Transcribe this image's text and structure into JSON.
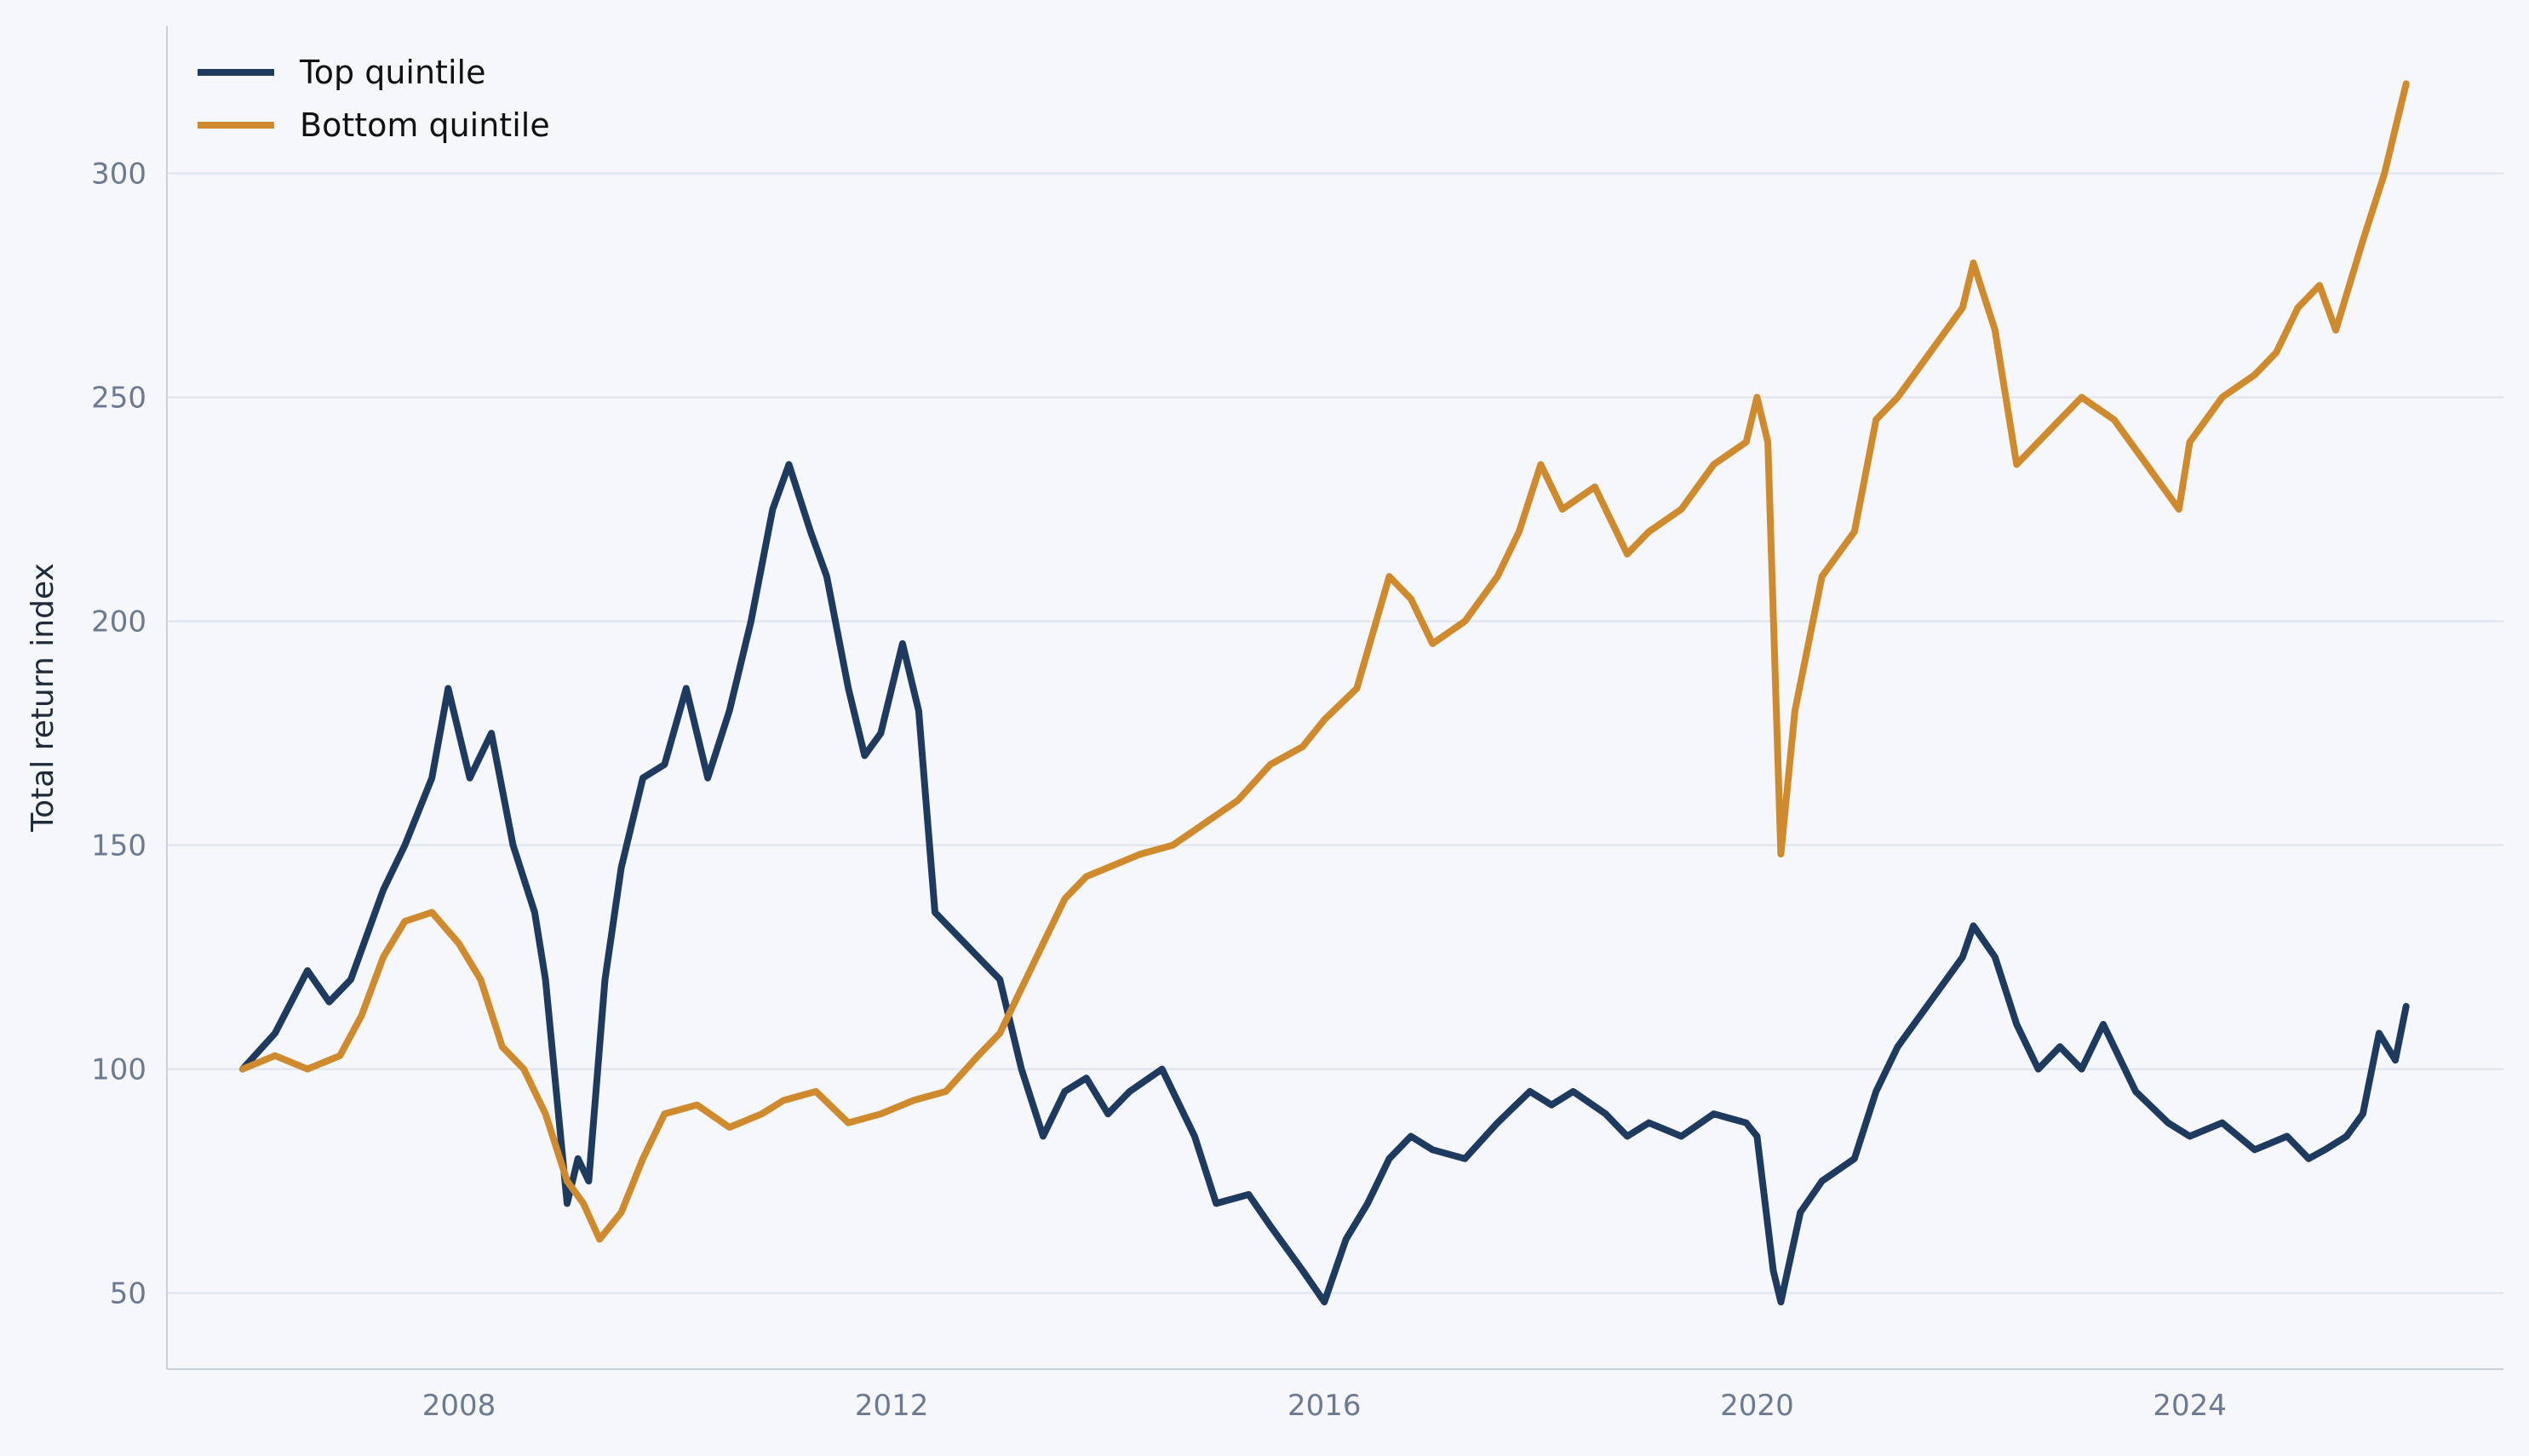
{
  "chart_data": {
    "type": "line",
    "title": "",
    "xlabel": "",
    "ylabel": "Total return index",
    "xlim": [
      2005.3,
      2026.9
    ],
    "ylim": [
      33,
      333
    ],
    "x_ticks": [
      2008,
      2012,
      2016,
      2020,
      2024
    ],
    "x_tick_labels": [
      "2008",
      "2012",
      "2016",
      "2020",
      "2024"
    ],
    "y_ticks": [
      50,
      100,
      150,
      200,
      250,
      300
    ],
    "y_tick_labels": [
      "50",
      "100",
      "150",
      "200",
      "250",
      "300"
    ],
    "grid": "horizontal",
    "legend_position": "top-left",
    "series": [
      {
        "name": "Top quintile",
        "color": "#1f3a5f",
        "x": [
          2006.0,
          2006.3,
          2006.6,
          2006.8,
          2007.0,
          2007.3,
          2007.5,
          2007.75,
          2007.9,
          2008.1,
          2008.3,
          2008.5,
          2008.7,
          2008.8,
          2008.9,
          2009.0,
          2009.1,
          2009.2,
          2009.35,
          2009.5,
          2009.7,
          2009.9,
          2010.1,
          2010.3,
          2010.5,
          2010.7,
          2010.9,
          2011.05,
          2011.25,
          2011.4,
          2011.6,
          2011.75,
          2011.9,
          2012.1,
          2012.25,
          2012.4,
          2012.6,
          2012.8,
          2013.0,
          2013.2,
          2013.4,
          2013.6,
          2013.8,
          2014.0,
          2014.2,
          2014.5,
          2014.8,
          2015.0,
          2015.3,
          2015.5,
          2015.8,
          2016.0,
          2016.2,
          2016.4,
          2016.6,
          2016.8,
          2017.0,
          2017.3,
          2017.6,
          2017.9,
          2018.1,
          2018.3,
          2018.6,
          2018.8,
          2019.0,
          2019.3,
          2019.6,
          2019.9,
          2020.0,
          2020.15,
          2020.22,
          2020.4,
          2020.6,
          2020.9,
          2021.1,
          2021.3,
          2021.6,
          2021.9,
          2022.0,
          2022.2,
          2022.4,
          2022.6,
          2022.8,
          2023.0,
          2023.2,
          2023.5,
          2023.8,
          2024.0,
          2024.3,
          2024.6,
          2024.9,
          2025.1,
          2025.25,
          2025.45,
          2025.6,
          2025.75,
          2025.9,
          2026.0
        ],
        "values": [
          100,
          108,
          122,
          115,
          120,
          140,
          150,
          165,
          185,
          165,
          175,
          150,
          135,
          120,
          95,
          70,
          80,
          75,
          120,
          145,
          165,
          168,
          185,
          165,
          180,
          200,
          225,
          235,
          220,
          210,
          185,
          170,
          175,
          195,
          180,
          135,
          130,
          125,
          120,
          100,
          85,
          95,
          98,
          90,
          95,
          100,
          85,
          70,
          72,
          65,
          55,
          48,
          62,
          70,
          80,
          85,
          82,
          80,
          88,
          95,
          92,
          95,
          90,
          85,
          88,
          85,
          90,
          88,
          85,
          55,
          48,
          68,
          75,
          80,
          95,
          105,
          115,
          125,
          132,
          125,
          110,
          100,
          105,
          100,
          110,
          95,
          88,
          85,
          88,
          82,
          85,
          80,
          82,
          85,
          90,
          108,
          102,
          114
        ]
      },
      {
        "name": "Bottom quintile",
        "color": "#d08a2e",
        "x": [
          2006.0,
          2006.3,
          2006.6,
          2006.9,
          2007.1,
          2007.3,
          2007.5,
          2007.75,
          2008.0,
          2008.2,
          2008.4,
          2008.6,
          2008.8,
          2009.0,
          2009.15,
          2009.3,
          2009.5,
          2009.7,
          2009.9,
          2010.2,
          2010.5,
          2010.8,
          2011.0,
          2011.3,
          2011.6,
          2011.9,
          2012.2,
          2012.5,
          2012.8,
          2013.0,
          2013.2,
          2013.4,
          2013.6,
          2013.8,
          2014.0,
          2014.3,
          2014.6,
          2014.9,
          2015.2,
          2015.5,
          2015.8,
          2016.0,
          2016.3,
          2016.6,
          2016.8,
          2017.0,
          2017.3,
          2017.6,
          2017.8,
          2018.0,
          2018.2,
          2018.5,
          2018.8,
          2019.0,
          2019.3,
          2019.6,
          2019.9,
          2020.0,
          2020.1,
          2020.22,
          2020.35,
          2020.6,
          2020.9,
          2021.1,
          2021.3,
          2021.6,
          2021.9,
          2022.0,
          2022.2,
          2022.4,
          2022.6,
          2022.8,
          2023.0,
          2023.3,
          2023.6,
          2023.9,
          2024.0,
          2024.3,
          2024.6,
          2024.8,
          2025.0,
          2025.2,
          2025.35,
          2025.6,
          2025.8,
          2025.9,
          2026.0
        ],
        "values": [
          100,
          103,
          100,
          103,
          112,
          125,
          133,
          135,
          128,
          120,
          105,
          100,
          90,
          75,
          70,
          62,
          68,
          80,
          90,
          92,
          87,
          90,
          93,
          95,
          88,
          90,
          93,
          95,
          103,
          108,
          118,
          128,
          138,
          143,
          145,
          148,
          150,
          155,
          160,
          168,
          172,
          178,
          185,
          210,
          205,
          195,
          200,
          210,
          220,
          235,
          225,
          230,
          215,
          220,
          225,
          235,
          240,
          250,
          240,
          148,
          180,
          210,
          220,
          245,
          250,
          260,
          270,
          280,
          265,
          235,
          240,
          245,
          250,
          245,
          235,
          225,
          240,
          250,
          255,
          260,
          270,
          275,
          265,
          285,
          300,
          310,
          320
        ]
      }
    ]
  }
}
